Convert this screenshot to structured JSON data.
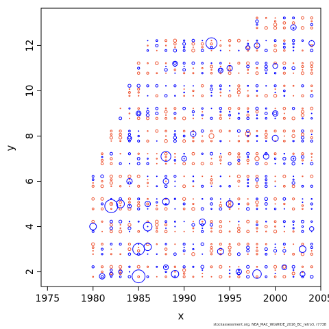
{
  "chart_data": {
    "type": "scatter",
    "title": "",
    "xlabel": "x",
    "ylabel": "y",
    "xlim": [
      1974.3,
      2005.0
    ],
    "ylim": [
      1.35,
      13.65
    ],
    "xticks": [
      1975,
      1980,
      1985,
      1990,
      1995,
      2000,
      2005
    ],
    "yticks": [
      2,
      4,
      6,
      8,
      10,
      12
    ],
    "colors": {
      "positive": "#0000ff",
      "negative": "#ee5533",
      "axis": "#000000"
    },
    "grid": false,
    "legend": "none",
    "marker": "open-circle; size proportional to residual magnitude",
    "ages": [
      2,
      3,
      4,
      5,
      6,
      7,
      8,
      9,
      10,
      11,
      12,
      13
    ],
    "first_year_by_age": {
      "2": 1980,
      "3": 1980,
      "4": 1980,
      "5": 1980,
      "6": 1980,
      "7": 1981,
      "8": 1982,
      "9": 1983,
      "10": 1984,
      "11": 1985,
      "12": 1986,
      "13": 1998
    },
    "last_year": 2004,
    "points": [
      {
        "x": 1980,
        "y": 4,
        "sign": 1,
        "mag": 0.55
      },
      {
        "x": 1981,
        "y": 1.8,
        "sign": 1,
        "mag": 0.45
      },
      {
        "x": 1982,
        "y": 1.9,
        "sign": 1,
        "mag": 0.3
      },
      {
        "x": 1982,
        "y": 4.9,
        "sign": 1,
        "mag": 1.05
      },
      {
        "x": 1982,
        "y": 5,
        "sign": -1,
        "mag": 0.25
      },
      {
        "x": 1983,
        "y": 5,
        "sign": 1,
        "mag": 0.65
      },
      {
        "x": 1983,
        "y": 2,
        "sign": 1,
        "mag": 0.3
      },
      {
        "x": 1984,
        "y": 6,
        "sign": 1,
        "mag": 0.45
      },
      {
        "x": 1984,
        "y": 7.9,
        "sign": 1,
        "mag": 0.35
      },
      {
        "x": 1984,
        "y": 4.9,
        "sign": 1,
        "mag": 0.3
      },
      {
        "x": 1985,
        "y": 1.8,
        "sign": 1,
        "mag": 1.05
      },
      {
        "x": 1985,
        "y": 3,
        "sign": 1,
        "mag": 0.95
      },
      {
        "x": 1985,
        "y": 9,
        "sign": 1,
        "mag": 0.4
      },
      {
        "x": 1986,
        "y": 4,
        "sign": 1,
        "mag": 0.7
      },
      {
        "x": 1986,
        "y": 3.1,
        "sign": 1,
        "mag": 0.6
      },
      {
        "x": 1986,
        "y": 5,
        "sign": 1,
        "mag": 0.45
      },
      {
        "x": 1988,
        "y": 7.1,
        "sign": 1,
        "mag": 0.8
      },
      {
        "x": 1988,
        "y": 5.1,
        "sign": 1,
        "mag": 0.55
      },
      {
        "x": 1988,
        "y": 6,
        "sign": 1,
        "mag": 0.45
      },
      {
        "x": 1988,
        "y": 2.2,
        "sign": 1,
        "mag": 0.4
      },
      {
        "x": 1989,
        "y": 11.2,
        "sign": 1,
        "mag": 0.4
      },
      {
        "x": 1989,
        "y": 1.9,
        "sign": 1,
        "mag": 0.6
      },
      {
        "x": 1990,
        "y": 7,
        "sign": 1,
        "mag": 0.4
      },
      {
        "x": 1991,
        "y": 8.1,
        "sign": 1,
        "mag": 0.45
      },
      {
        "x": 1992,
        "y": 4.2,
        "sign": 1,
        "mag": 0.5
      },
      {
        "x": 1993,
        "y": 12.1,
        "sign": 1,
        "mag": 0.9
      },
      {
        "x": 1993,
        "y": 8,
        "sign": -1,
        "mag": 0.4
      },
      {
        "x": 1994,
        "y": 2.9,
        "sign": 1,
        "mag": 0.5
      },
      {
        "x": 1994,
        "y": 10.9,
        "sign": 1,
        "mag": 0.4
      },
      {
        "x": 1995,
        "y": 11,
        "sign": 1,
        "mag": 0.45
      },
      {
        "x": 1995,
        "y": 5,
        "sign": 1,
        "mag": 0.55
      },
      {
        "x": 1996,
        "y": 2,
        "sign": 1,
        "mag": 0.45
      },
      {
        "x": 1997,
        "y": 11.9,
        "sign": 1,
        "mag": 0.35
      },
      {
        "x": 1997,
        "y": 8.1,
        "sign": -1,
        "mag": 0.4
      },
      {
        "x": 1998,
        "y": 12,
        "sign": 1,
        "mag": 0.45
      },
      {
        "x": 1998,
        "y": 1.9,
        "sign": 1,
        "mag": 0.7
      },
      {
        "x": 1998,
        "y": 7,
        "sign": -1,
        "mag": 0.35
      },
      {
        "x": 1999,
        "y": 7.1,
        "sign": 1,
        "mag": 0.45
      },
      {
        "x": 2000,
        "y": 7.9,
        "sign": 1,
        "mag": 0.5
      },
      {
        "x": 2000,
        "y": 11.1,
        "sign": 1,
        "mag": 0.4
      },
      {
        "x": 2000,
        "y": 9,
        "sign": 1,
        "mag": 0.45
      },
      {
        "x": 2001,
        "y": 2.2,
        "sign": 1,
        "mag": 0.4
      },
      {
        "x": 2002,
        "y": 12.8,
        "sign": 1,
        "mag": 0.45
      },
      {
        "x": 2002,
        "y": 7,
        "sign": 1,
        "mag": 0.4
      },
      {
        "x": 2003,
        "y": 3,
        "sign": 1,
        "mag": 0.55
      },
      {
        "x": 2003,
        "y": 1.9,
        "sign": 1,
        "mag": 0.4
      },
      {
        "x": 2004,
        "y": 12.1,
        "sign": 1,
        "mag": 0.45
      },
      {
        "x": 2004,
        "y": 3.9,
        "sign": 1,
        "mag": 0.35
      }
    ]
  },
  "caption": "stockassessment.org, NEA_MAC_WGWIDE_2016_BC_retro3, r7738"
}
